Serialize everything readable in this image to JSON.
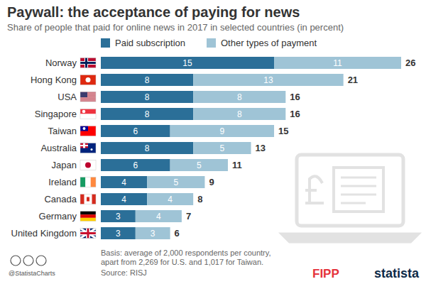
{
  "chart_data": {
    "type": "bar",
    "orientation": "horizontal",
    "stacked": true,
    "data_labels": true,
    "title": "Paywall: the acceptance of paying for news",
    "subtitle": "Share of people that paid for online news in 2017 in selected countries (in percent)",
    "categories": [
      "Norway",
      "Hong Kong",
      "USA",
      "Singapore",
      "Taiwan",
      "Australia",
      "Japan",
      "Ireland",
      "Canada",
      "Germany",
      "United Kingdom"
    ],
    "series": [
      {
        "name": "Paid subscription",
        "color": "#2b6f98",
        "values": [
          15,
          8,
          8,
          8,
          6,
          8,
          6,
          4,
          4,
          3,
          3
        ]
      },
      {
        "name": "Other types of payment",
        "color": "#9fc4d6",
        "values": [
          11,
          13,
          8,
          8,
          9,
          5,
          5,
          5,
          4,
          4,
          3
        ]
      }
    ],
    "totals": [
      26,
      21,
      16,
      16,
      15,
      13,
      11,
      9,
      8,
      7,
      6
    ],
    "xlim": [
      0,
      26
    ],
    "tick_labels": "y",
    "grid": false,
    "legend": "top-left",
    "annotations": [
      "Basis: average of 2,000 respondents per country,",
      "apart from 2,269 for U.S. and 1,017 for Taiwan.",
      "Source: RISJ",
      "@StatistaCharts",
      "FIPP",
      "statista"
    ]
  }
}
